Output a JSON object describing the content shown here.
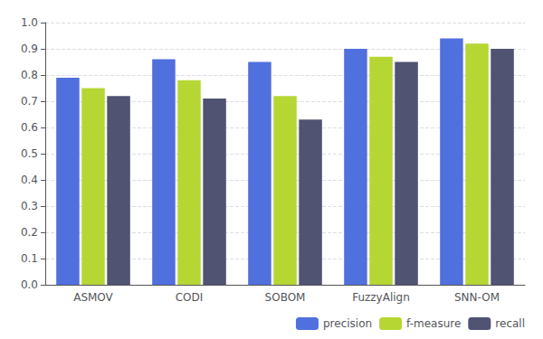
{
  "chart_data": {
    "type": "bar",
    "categories": [
      "ASMOV",
      "CODI",
      "SOBOM",
      "FuzzyAlign",
      "SNN-OM"
    ],
    "series": [
      {
        "name": "precision",
        "values": [
          0.79,
          0.86,
          0.85,
          0.9,
          0.94
        ]
      },
      {
        "name": "f-measure",
        "values": [
          0.75,
          0.78,
          0.72,
          0.87,
          0.92
        ]
      },
      {
        "name": "recall",
        "values": [
          0.72,
          0.71,
          0.63,
          0.85,
          0.9
        ]
      }
    ],
    "ylim": [
      0,
      1
    ],
    "yticks": [
      {
        "value": 0,
        "label": "0.0"
      },
      0.1,
      0.2,
      0.3,
      0.4,
      0.5,
      0.6,
      0.7,
      0.8,
      0.9,
      {
        "value": 1,
        "label": "1.0"
      }
    ],
    "grid": true,
    "legend": "lower right"
  }
}
